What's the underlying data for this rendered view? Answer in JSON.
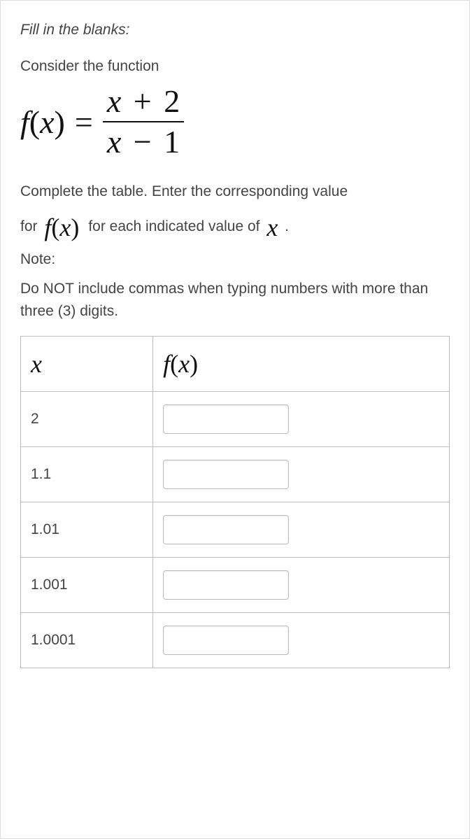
{
  "instruction": "Fill in the blanks:",
  "prompt": "Consider the function",
  "formula": {
    "lhs_f": "f",
    "lhs_open": "(",
    "lhs_var": "x",
    "lhs_close": ")",
    "eq": "=",
    "num_var": "x",
    "num_op": "+",
    "num_const": "2",
    "den_var": "x",
    "den_op": "−",
    "den_const": "1"
  },
  "body1": "Complete the table. Enter the corresponding value",
  "body2_prefix": "for ",
  "body2_fx_f": "f",
  "body2_fx_open": "(",
  "body2_fx_var": "x",
  "body2_fx_close": ")",
  "body2_suffix": " for each indicated value of ",
  "body2_x": "x",
  "body2_period": " .",
  "note_label": "Note:",
  "note_text": "Do NOT include commas when typing numbers with more than three (3) digits.",
  "table": {
    "header_x": "x",
    "header_fx_f": "f",
    "header_fx_open": "(",
    "header_fx_var": "x",
    "header_fx_close": ")",
    "rows": [
      {
        "x": "2",
        "fx": ""
      },
      {
        "x": "1.1",
        "fx": ""
      },
      {
        "x": "1.01",
        "fx": ""
      },
      {
        "x": "1.001",
        "fx": ""
      },
      {
        "x": "1.0001",
        "fx": ""
      }
    ]
  },
  "style": {
    "text_color": "#444444",
    "math_color": "#111111",
    "border_color": "#bdbdbd",
    "input_border": "#bbbbbb",
    "background": "#ffffff",
    "body_fontsize": 21,
    "formula_fontsize": 46,
    "inline_math_fontsize": 36
  }
}
